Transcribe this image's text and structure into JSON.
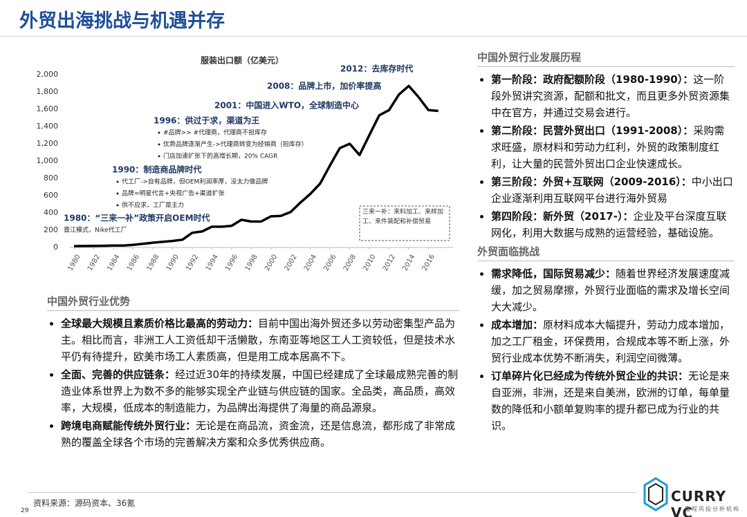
{
  "title": "外贸出海挑战与机遇并存",
  "chart_data": {
    "type": "line",
    "title": "服装出口额（亿美元）",
    "color": "#000000",
    "x": [
      1980,
      1981,
      1982,
      1983,
      1984,
      1985,
      1986,
      1987,
      1988,
      1989,
      1990,
      1991,
      1992,
      1993,
      1994,
      1995,
      1996,
      1997,
      1998,
      1999,
      2000,
      2001,
      2002,
      2003,
      2004,
      2005,
      2006,
      2007,
      2008,
      2009,
      2010,
      2011,
      2012,
      2013,
      2014,
      2015,
      2016,
      2017
    ],
    "values": [
      15,
      17,
      18,
      19,
      22,
      22,
      30,
      42,
      55,
      65,
      75,
      90,
      170,
      185,
      240,
      240,
      250,
      320,
      300,
      300,
      360,
      365,
      410,
      520,
      620,
      740,
      950,
      1150,
      1200,
      1070,
      1300,
      1530,
      1590,
      1770,
      1870,
      1740,
      1590,
      1580
    ],
    "xlim": [
      1979.5,
      2018.5
    ],
    "xticks": [
      1980,
      1982,
      1984,
      1986,
      1988,
      1990,
      1992,
      1994,
      1996,
      1998,
      2000,
      2002,
      2004,
      2006,
      2008,
      2010,
      2012,
      2014,
      2016
    ],
    "ylim": [
      0,
      2000
    ],
    "yticks": [
      0,
      200,
      400,
      600,
      800,
      {
        "value": 1000,
        "label": "1,000"
      },
      {
        "value": 1200,
        "label": "1,200"
      },
      {
        "value": 1400,
        "label": "1,400"
      },
      {
        "value": 1600,
        "label": "1,600"
      },
      {
        "value": 1800,
        "label": "1,800"
      },
      {
        "value": 2000,
        "label": "2,000"
      }
    ],
    "annotations": [
      {
        "text": "2012：去库存时代",
        "bullets": []
      },
      {
        "text": "2008：品牌上市，加价率提高",
        "bullets": []
      },
      {
        "text": "2001：中国进入WTO，全球制造中心",
        "bullets": []
      },
      {
        "text": "1996：供过于求，渠道为王",
        "bullets": [
          "#品牌>> #代理商，代理商不担库存",
          "优势品牌逐渐产生->代理商转变为经销商（担库存）",
          "门店加速扩张下的高增长期，20% CAGR"
        ]
      },
      {
        "text": "1990：制造商品牌时代",
        "bullets": [
          "代工厂->自有品牌，但OEM利润率厚，没太力做品牌",
          "品牌=明星代言+央视广告+渠道扩张",
          "供不应求，工厂是主力"
        ]
      },
      {
        "text": "1980：“三来一补”政策开启OEM时代",
        "bullets": [
          "晋江模式，Nike代工厂"
        ]
      }
    ],
    "note": "三来一补：来料加工、来样加工、来件装配和补偿贸易"
  },
  "advantages": {
    "heading": "中国外贸行业优势",
    "items": [
      {
        "lead": "全球最大规模且素质价格比最高的劳动力：",
        "text": "目前中国出海外贸还多以劳动密集型产品为主。相比而言，非洲工人工资低却干活懒散，东南亚等地区工人工资较低，但是技术水平仍有待提升，欧美市场工人素质高，但是用工成本居高不下。"
      },
      {
        "lead": "全面、完善的供应链条：",
        "text": "经过近30年的持续发展，中国已经建成了全球最成熟完善的制造业体系世界上为数不多的能够实现全产业链与供应链的国家。全品类，高品质，高效率，大规模，低成本的制造能力，为品牌出海提供了海量的商品源泉。"
      },
      {
        "lead": "跨境电商赋能传统外贸行业：",
        "text": "无论是在商品流，资金流，还是信息流，都形成了非常成熟的覆盖全球各个市场的完善解决方案和众多优秀供应商。"
      }
    ]
  },
  "history": {
    "heading": "中国外贸行业发展历程",
    "items": [
      {
        "lead": "第一阶段：政府配额阶段（1980-1990）：",
        "text": "这一阶段外贸讲究资源，配额和批文，而且更多外贸资源集中在官方，并通过交易会进行。"
      },
      {
        "lead": "第二阶段：民营外贸出口（1991-2008）：",
        "text": "采购需求旺盛，原材料和劳动力红利，外贸的政策制度红利，让大量的民营外贸出口企业快速成长。"
      },
      {
        "lead": "第三阶段：外贸+互联网（2009-2016）：",
        "text": "中小出口企业逐渐利用互联网平台进行海外贸易"
      },
      {
        "lead": "第四阶段：新外贸（2017-）：",
        "text": "企业及平台深度互联网化，利用大数据与成熟的运营经验，基础设施。"
      }
    ]
  },
  "challenges": {
    "heading": "外贸面临挑战",
    "items": [
      {
        "lead": "需求降低，国际贸易减少：",
        "text": "随着世界经济发展速度减缓，加之贸易摩擦，外贸行业面临的需求及增长空间大大减少。"
      },
      {
        "lead": "成本增加：",
        "text": "原材料成本大幅提升，劳动力成本增加，加之工厂租金，环保费用，合规成本等不断上涨，外贸行业成本优势不断消失，利润空间微薄。"
      },
      {
        "lead": "订单碎片化已经成为传统外贸企业的共识：",
        "text": "无论是来自亚洲，非洲，还是来自美洲，欧洲的订单，每单量数的降低和小额单复购率的提升都已成为行业的共识。"
      }
    ]
  },
  "source": "资料来源：源码资本、36氪",
  "page": "29",
  "logo": "CURRY VC",
  "logo_sub": "嘉程风投分析机构"
}
